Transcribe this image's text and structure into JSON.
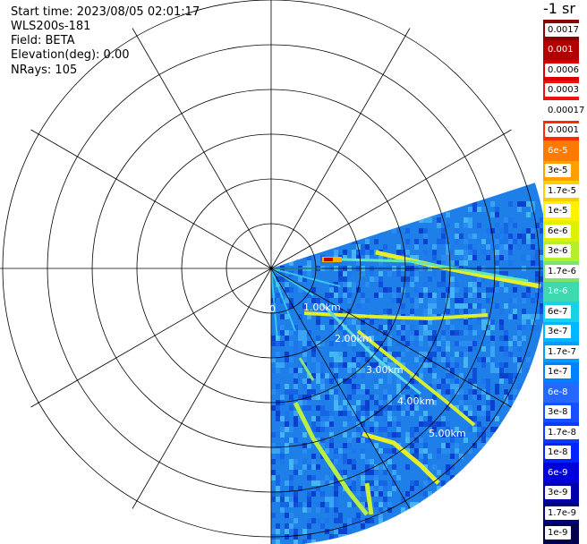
{
  "meta": {
    "start_time": "Start time: 2023/08/05 02:01:17",
    "instrument": "WLS200s-181",
    "field": "Field: BETA",
    "elevation": "Elevation(deg): 0.00",
    "nrays": "NRays: 105"
  },
  "units": "-1 sr",
  "range_rings": [
    "0",
    "1.00km",
    "2.00km",
    "3.00km",
    "4.00km",
    "5.00km"
  ],
  "colorbar": [
    {
      "label": "0.0017",
      "color": "#8b0000",
      "text_bg": "#ffffff",
      "text_color": "#000000"
    },
    {
      "label": "0.001",
      "color": "#b20000",
      "text_bg": "#b20000",
      "text_color": "#ffffff"
    },
    {
      "label": "0.0006",
      "color": "#d40000",
      "text_bg": "#ffffff",
      "text_color": "#000000"
    },
    {
      "label": "0.0003",
      "color": "#ee1111",
      "text_bg": "#ffffff",
      "text_color": "#000000"
    },
    {
      "label": "0.00017",
      "color": "#ffffff",
      "text_bg": "#ffffff",
      "text_color": "#000000"
    },
    {
      "label": "0.0001",
      "color": "#ff2a00",
      "text_bg": "#ffffff",
      "text_color": "#000000"
    },
    {
      "label": "6e-5",
      "color": "#ff7a00",
      "text_bg": "#ff7a00",
      "text_color": "#ffffff"
    },
    {
      "label": "3e-5",
      "color": "#ffa000",
      "text_bg": "#ffffff",
      "text_color": "#000000"
    },
    {
      "label": "1.7e-5",
      "color": "#ffcc00",
      "text_bg": "#ffffff",
      "text_color": "#000000"
    },
    {
      "label": "1e-5",
      "color": "#fff200",
      "text_bg": "#ffffff",
      "text_color": "#000000"
    },
    {
      "label": "6e-6",
      "color": "#ddf200",
      "text_bg": "#ffffff",
      "text_color": "#000000"
    },
    {
      "label": "3e-6",
      "color": "#b5ee2a",
      "text_bg": "#ffffff",
      "text_color": "#000000"
    },
    {
      "label": "1.7e-6",
      "color": "#7be36a",
      "text_bg": "#ffffff",
      "text_color": "#000000"
    },
    {
      "label": "1e-6",
      "color": "#3fd9b0",
      "text_bg": "#3fd9b0",
      "text_color": "#ffffff"
    },
    {
      "label": "6e-7",
      "color": "#19d0e8",
      "text_bg": "#ffffff",
      "text_color": "#000000"
    },
    {
      "label": "3e-7",
      "color": "#00b7ff",
      "text_bg": "#ffffff",
      "text_color": "#000000"
    },
    {
      "label": "1.7e-7",
      "color": "#009cff",
      "text_bg": "#ffffff",
      "text_color": "#000000"
    },
    {
      "label": "1e-7",
      "color": "#0080ff",
      "text_bg": "#ffffff",
      "text_color": "#000000"
    },
    {
      "label": "6e-8",
      "color": "#2468ff",
      "text_bg": "#2468ff",
      "text_color": "#ffffff"
    },
    {
      "label": "3e-8",
      "color": "#1450ff",
      "text_bg": "#ffffff",
      "text_color": "#000000"
    },
    {
      "label": "1.7e-8",
      "color": "#0a3cff",
      "text_bg": "#ffffff",
      "text_color": "#000000"
    },
    {
      "label": "1e-8",
      "color": "#0022ff",
      "text_bg": "#ffffff",
      "text_color": "#000000"
    },
    {
      "label": "6e-9",
      "color": "#0000dd",
      "text_bg": "#0000dd",
      "text_color": "#ffffff"
    },
    {
      "label": "3e-9",
      "color": "#0000aa",
      "text_bg": "#ffffff",
      "text_color": "#000000"
    },
    {
      "label": "1.7e-9",
      "color": "#00007a",
      "text_bg": "#ffffff",
      "text_color": "#000000"
    },
    {
      "label": "1e-9",
      "color": "#000050",
      "text_bg": "#ffffff",
      "text_color": "#000000"
    }
  ]
}
